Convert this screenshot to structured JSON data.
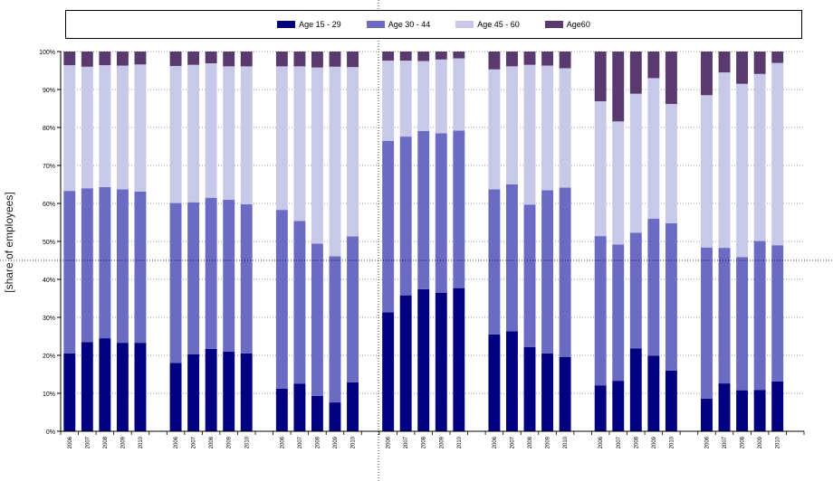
{
  "chart_data": {
    "type": "bar",
    "stacked": true,
    "ylabel": "[share of employees]",
    "ylim": [
      0,
      100
    ],
    "yticks": [
      "0%",
      "10%",
      "20%",
      "30%",
      "40%",
      "50%",
      "60%",
      "70%",
      "80%",
      "90%",
      "100%"
    ],
    "grid": true,
    "legend_position": "top",
    "groups": 7,
    "categories": [
      "2006",
      "2007",
      "2008",
      "2009",
      "2010",
      "2006",
      "2007",
      "2008",
      "2009",
      "2010",
      "2006",
      "2007",
      "2008",
      "2009",
      "2010",
      "2006",
      "2007",
      "2008",
      "2009",
      "2010",
      "2006",
      "2007",
      "2008",
      "2009",
      "2010",
      "2006",
      "2007",
      "2008",
      "2009",
      "2010",
      "2006",
      "2007",
      "2008",
      "2009",
      "2010"
    ],
    "series": [
      {
        "name": "Age 15 - 29",
        "color": "#000080",
        "values": [
          20.5,
          23.5,
          24.5,
          23.3,
          23.3,
          18.0,
          20.3,
          21.7,
          21.0,
          20.5,
          11.2,
          12.5,
          9.3,
          7.6,
          12.9,
          31.3,
          35.8,
          37.4,
          36.5,
          37.7,
          25.5,
          26.3,
          22.2,
          20.5,
          19.6,
          12.1,
          13.3,
          21.8,
          19.9,
          16.0,
          8.6,
          12.6,
          10.8,
          10.9,
          13.1
        ]
      },
      {
        "name": "Age 30 - 44",
        "color": "#6b6bc4",
        "values": [
          42.8,
          40.5,
          39.8,
          40.4,
          39.8,
          42.1,
          40.0,
          39.8,
          40.0,
          39.3,
          47.1,
          42.9,
          40.1,
          38.5,
          38.4,
          45.2,
          41.8,
          41.7,
          42.0,
          41.5,
          38.2,
          38.7,
          37.5,
          43.0,
          44.6,
          39.3,
          35.9,
          30.5,
          36.1,
          38.8,
          39.8,
          35.7,
          35.1,
          39.2,
          35.9
        ]
      },
      {
        "name": "Age 45 - 60",
        "color": "#c8c8e8",
        "values": [
          33.1,
          32.0,
          32.1,
          32.6,
          33.5,
          36.1,
          36.2,
          35.4,
          35.1,
          36.3,
          37.8,
          40.7,
          46.4,
          49.9,
          44.6,
          21.1,
          20.0,
          18.4,
          19.4,
          19.0,
          31.6,
          31.1,
          36.8,
          32.8,
          31.4,
          35.5,
          32.4,
          36.6,
          37.0,
          31.4,
          40.1,
          46.2,
          45.6,
          44.0,
          48.0
        ]
      },
      {
        "name": "Age60",
        "color": "#5a3a6e",
        "values": [
          3.6,
          4.0,
          3.6,
          3.7,
          3.4,
          3.8,
          3.5,
          3.1,
          3.9,
          3.9,
          3.9,
          3.9,
          4.2,
          4.0,
          4.1,
          2.4,
          2.4,
          2.5,
          2.1,
          1.8,
          4.7,
          3.9,
          3.5,
          3.7,
          4.4,
          13.1,
          18.4,
          11.1,
          7.0,
          13.8,
          11.5,
          5.5,
          8.5,
          5.9,
          3.0
        ]
      }
    ]
  }
}
